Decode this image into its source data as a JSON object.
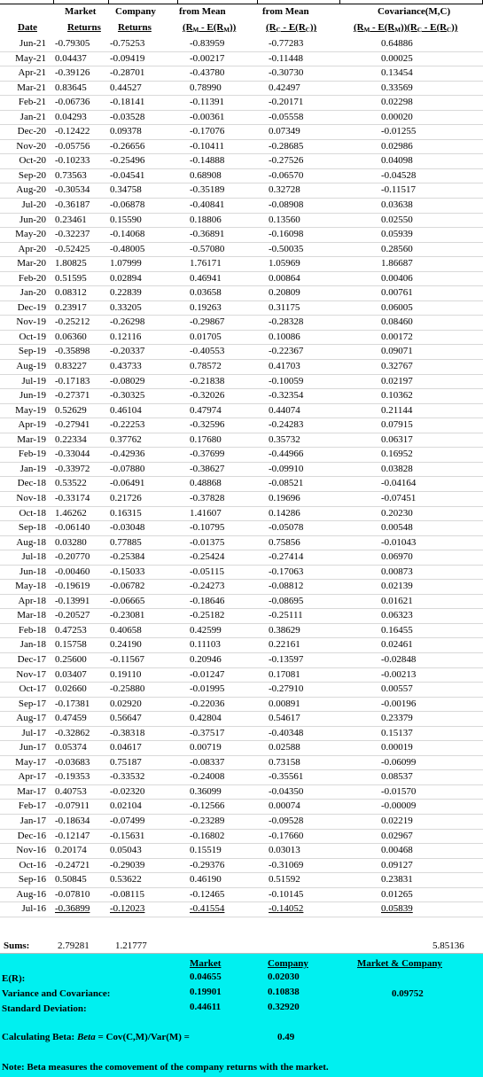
{
  "headers": {
    "row1": {
      "market": "Market",
      "company": "Company",
      "from_mean_m": "from Mean",
      "from_mean_c": "from Mean",
      "covariance": "Covariance(M,C)"
    },
    "row2": {
      "date": "Date",
      "market": "Returns",
      "company": "Returns",
      "dev_m": "(R",
      "dev_m_sub": "M",
      "dev_m_mid": " - E(R",
      "dev_m_sub2": "M",
      "dev_m_end": "))",
      "dev_c": "(R",
      "dev_c_sub": "C",
      "dev_c_mid": " - E(R",
      "dev_c_sub2": "C",
      "dev_c_end": "))",
      "cov": "(R",
      "cov_sub": "M",
      "cov_mid": " - E(R",
      "cov_sub2": "M",
      "cov_mid2": "))(R",
      "cov_sub3": "C",
      "cov_mid3": " - E(R",
      "cov_sub4": "C",
      "cov_end": "))"
    }
  },
  "rows": [
    [
      "Jun-21",
      "-0.79305",
      "-0.75253",
      "-0.83959",
      "-0.77283",
      "0.64886"
    ],
    [
      "May-21",
      "0.04437",
      "-0.09419",
      "-0.00217",
      "-0.11448",
      "0.00025"
    ],
    [
      "Apr-21",
      "-0.39126",
      "-0.28701",
      "-0.43780",
      "-0.30730",
      "0.13454"
    ],
    [
      "Mar-21",
      "0.83645",
      "0.44527",
      "0.78990",
      "0.42497",
      "0.33569"
    ],
    [
      "Feb-21",
      "-0.06736",
      "-0.18141",
      "-0.11391",
      "-0.20171",
      "0.02298"
    ],
    [
      "Jan-21",
      "0.04293",
      "-0.03528",
      "-0.00361",
      "-0.05558",
      "0.00020"
    ],
    [
      "Dec-20",
      "-0.12422",
      "0.09378",
      "-0.17076",
      "0.07349",
      "-0.01255"
    ],
    [
      "Nov-20",
      "-0.05756",
      "-0.26656",
      "-0.10411",
      "-0.28685",
      "0.02986"
    ],
    [
      "Oct-20",
      "-0.10233",
      "-0.25496",
      "-0.14888",
      "-0.27526",
      "0.04098"
    ],
    [
      "Sep-20",
      "0.73563",
      "-0.04541",
      "0.68908",
      "-0.06570",
      "-0.04528"
    ],
    [
      "Aug-20",
      "-0.30534",
      "0.34758",
      "-0.35189",
      "0.32728",
      "-0.11517"
    ],
    [
      "Jul-20",
      "-0.36187",
      "-0.06878",
      "-0.40841",
      "-0.08908",
      "0.03638"
    ],
    [
      "Jun-20",
      "0.23461",
      "0.15590",
      "0.18806",
      "0.13560",
      "0.02550"
    ],
    [
      "May-20",
      "-0.32237",
      "-0.14068",
      "-0.36891",
      "-0.16098",
      "0.05939"
    ],
    [
      "Apr-20",
      "-0.52425",
      "-0.48005",
      "-0.57080",
      "-0.50035",
      "0.28560"
    ],
    [
      "Mar-20",
      "1.80825",
      "1.07999",
      "1.76171",
      "1.05969",
      "1.86687"
    ],
    [
      "Feb-20",
      "0.51595",
      "0.02894",
      "0.46941",
      "0.00864",
      "0.00406"
    ],
    [
      "Jan-20",
      "0.08312",
      "0.22839",
      "0.03658",
      "0.20809",
      "0.00761"
    ],
    [
      "Dec-19",
      "0.23917",
      "0.33205",
      "0.19263",
      "0.31175",
      "0.06005"
    ],
    [
      "Nov-19",
      "-0.25212",
      "-0.26298",
      "-0.29867",
      "-0.28328",
      "0.08460"
    ],
    [
      "Oct-19",
      "0.06360",
      "0.12116",
      "0.01705",
      "0.10086",
      "0.00172"
    ],
    [
      "Sep-19",
      "-0.35898",
      "-0.20337",
      "-0.40553",
      "-0.22367",
      "0.09071"
    ],
    [
      "Aug-19",
      "0.83227",
      "0.43733",
      "0.78572",
      "0.41703",
      "0.32767"
    ],
    [
      "Jul-19",
      "-0.17183",
      "-0.08029",
      "-0.21838",
      "-0.10059",
      "0.02197"
    ],
    [
      "Jun-19",
      "-0.27371",
      "-0.30325",
      "-0.32026",
      "-0.32354",
      "0.10362"
    ],
    [
      "May-19",
      "0.52629",
      "0.46104",
      "0.47974",
      "0.44074",
      "0.21144"
    ],
    [
      "Apr-19",
      "-0.27941",
      "-0.22253",
      "-0.32596",
      "-0.24283",
      "0.07915"
    ],
    [
      "Mar-19",
      "0.22334",
      "0.37762",
      "0.17680",
      "0.35732",
      "0.06317"
    ],
    [
      "Feb-19",
      "-0.33044",
      "-0.42936",
      "-0.37699",
      "-0.44966",
      "0.16952"
    ],
    [
      "Jan-19",
      "-0.33972",
      "-0.07880",
      "-0.38627",
      "-0.09910",
      "0.03828"
    ],
    [
      "Dec-18",
      "0.53522",
      "-0.06491",
      "0.48868",
      "-0.08521",
      "-0.04164"
    ],
    [
      "Nov-18",
      "-0.33174",
      "0.21726",
      "-0.37828",
      "0.19696",
      "-0.07451"
    ],
    [
      "Oct-18",
      "1.46262",
      "0.16315",
      "1.41607",
      "0.14286",
      "0.20230"
    ],
    [
      "Sep-18",
      "-0.06140",
      "-0.03048",
      "-0.10795",
      "-0.05078",
      "0.00548"
    ],
    [
      "Aug-18",
      "0.03280",
      "0.77885",
      "-0.01375",
      "0.75856",
      "-0.01043"
    ],
    [
      "Jul-18",
      "-0.20770",
      "-0.25384",
      "-0.25424",
      "-0.27414",
      "0.06970"
    ],
    [
      "Jun-18",
      "-0.00460",
      "-0.15033",
      "-0.05115",
      "-0.17063",
      "0.00873"
    ],
    [
      "May-18",
      "-0.19619",
      "-0.06782",
      "-0.24273",
      "-0.08812",
      "0.02139"
    ],
    [
      "Apr-18",
      "-0.13991",
      "-0.06665",
      "-0.18646",
      "-0.08695",
      "0.01621"
    ],
    [
      "Mar-18",
      "-0.20527",
      "-0.23081",
      "-0.25182",
      "-0.25111",
      "0.06323"
    ],
    [
      "Feb-18",
      "0.47253",
      "0.40658",
      "0.42599",
      "0.38629",
      "0.16455"
    ],
    [
      "Jan-18",
      "0.15758",
      "0.24190",
      "0.11103",
      "0.22161",
      "0.02461"
    ],
    [
      "Dec-17",
      "0.25600",
      "-0.11567",
      "0.20946",
      "-0.13597",
      "-0.02848"
    ],
    [
      "Nov-17",
      "0.03407",
      "0.19110",
      "-0.01247",
      "0.17081",
      "-0.00213"
    ],
    [
      "Oct-17",
      "0.02660",
      "-0.25880",
      "-0.01995",
      "-0.27910",
      "0.00557"
    ],
    [
      "Sep-17",
      "-0.17381",
      "0.02920",
      "-0.22036",
      "0.00891",
      "-0.00196"
    ],
    [
      "Aug-17",
      "0.47459",
      "0.56647",
      "0.42804",
      "0.54617",
      "0.23379"
    ],
    [
      "Jul-17",
      "-0.32862",
      "-0.38318",
      "-0.37517",
      "-0.40348",
      "0.15137"
    ],
    [
      "Jun-17",
      "0.05374",
      "0.04617",
      "0.00719",
      "0.02588",
      "0.00019"
    ],
    [
      "May-17",
      "-0.03683",
      "0.75187",
      "-0.08337",
      "0.73158",
      "-0.06099"
    ],
    [
      "Apr-17",
      "-0.19353",
      "-0.33532",
      "-0.24008",
      "-0.35561",
      "0.08537"
    ],
    [
      "Mar-17",
      "0.40753",
      "-0.02320",
      "0.36099",
      "-0.04350",
      "-0.01570"
    ],
    [
      "Feb-17",
      "-0.07911",
      "0.02104",
      "-0.12566",
      "0.00074",
      "-0.00009"
    ],
    [
      "Jan-17",
      "-0.18634",
      "-0.07499",
      "-0.23289",
      "-0.09528",
      "0.02219"
    ],
    [
      "Dec-16",
      "-0.12147",
      "-0.15631",
      "-0.16802",
      "-0.17660",
      "0.02967"
    ],
    [
      "Nov-16",
      "0.20174",
      "0.05043",
      "0.15519",
      "0.03013",
      "0.00468"
    ],
    [
      "Oct-16",
      "-0.24721",
      "-0.29039",
      "-0.29376",
      "-0.31069",
      "0.09127"
    ],
    [
      "Sep-16",
      "0.50845",
      "0.53622",
      "0.46190",
      "0.51592",
      "0.23831"
    ],
    [
      "Aug-16",
      "-0.07810",
      "-0.08115",
      "-0.12465",
      "-0.10145",
      "0.01265"
    ],
    [
      "Jul-16",
      "-0.36899",
      "-0.12023",
      "-0.41554",
      "-0.14052",
      "0.05839"
    ]
  ],
  "sums": {
    "label": "Sums:",
    "market": "2.79281",
    "company": "1.21777",
    "covariance": "5.85136"
  },
  "summary": {
    "col_market": "Market",
    "col_company": "Company",
    "col_both": "Market & Company",
    "er_label": "E(R):",
    "er_market": "0.04655",
    "er_company": "0.02030",
    "var_label": "Variance and Covariance:",
    "var_market": "0.19901",
    "var_company": "0.10838",
    "covariance": "0.09752",
    "sd_label": "Standard Deviation:",
    "sd_market": "0.44611",
    "sd_company": "0.32920",
    "beta_label_pre": "Calculating Beta: ",
    "beta_label_italic": "Beta",
    "beta_label_post": " = Cov(C,M)/Var(M) =",
    "beta_value": "0.49",
    "note": "Note: Beta measures the comovement of the company returns with the market."
  },
  "colors": {
    "panel": "#00f0f0",
    "grid": "#d9d9d9"
  }
}
